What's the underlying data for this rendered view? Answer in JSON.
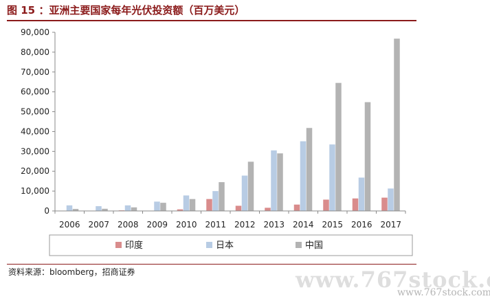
{
  "figure_title": "图 15 ：亚洲主要国家每年光伏投资额（百万美元）",
  "source_note": "资料来源：bloomberg，招商证券",
  "watermark": "www.767stock.com",
  "watermark_small": "www.767stock.com",
  "chart_data": {
    "type": "bar",
    "title": "",
    "xlabel": "",
    "ylabel": "",
    "categories": [
      "2006",
      "2007",
      "2008",
      "2009",
      "2010",
      "2011",
      "2012",
      "2013",
      "2014",
      "2015",
      "2016",
      "2017"
    ],
    "series": [
      {
        "name": "印度",
        "color": "#d98c8c",
        "values": [
          0,
          0,
          300,
          100,
          800,
          6000,
          2600,
          1600,
          3200,
          5700,
          6300,
          6700
        ]
      },
      {
        "name": "日本",
        "color": "#b8cce4",
        "values": [
          2800,
          2400,
          2800,
          4700,
          7800,
          10000,
          17800,
          30500,
          35100,
          33500,
          16800,
          11300
        ]
      },
      {
        "name": "中国",
        "color": "#b3b3b3",
        "values": [
          1000,
          1100,
          1800,
          4100,
          6000,
          14500,
          24800,
          29000,
          41800,
          64500,
          54800,
          86800
        ]
      }
    ],
    "ylim": [
      0,
      90000
    ],
    "yticks": [
      0,
      10000,
      20000,
      30000,
      40000,
      50000,
      60000,
      70000,
      80000,
      90000
    ],
    "ytick_labels": [
      "0",
      "10,000",
      "20,000",
      "30,000",
      "40,000",
      "50,000",
      "60,000",
      "70,000",
      "80,000",
      "90,000"
    ],
    "grid": false,
    "legend_position": "bottom"
  }
}
